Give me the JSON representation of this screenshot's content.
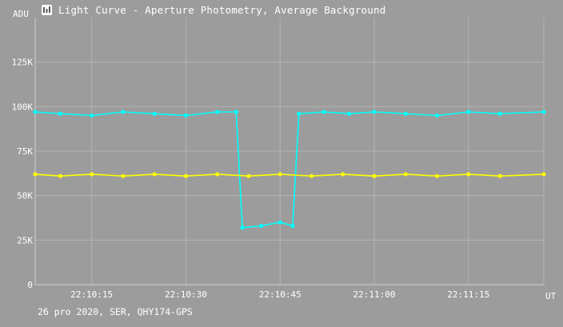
{
  "window": {
    "title": "Light Curve - Aperture Photometry, Average Background",
    "footer": "26 pro 2020, SER, QHY174-GPS",
    "icon": "light-curve-app-icon"
  },
  "chart_data": {
    "type": "line",
    "title": "Light Curve - Aperture Photometry, Average Background",
    "ylabel": "ADU",
    "xlabel": "UT",
    "ylim": [
      0,
      150000
    ],
    "xlim": [
      "22:10:06",
      "22:11:27"
    ],
    "y_ticks": [
      {
        "value": 0,
        "label": "0"
      },
      {
        "value": 25000,
        "label": "25K"
      },
      {
        "value": 50000,
        "label": "50K"
      },
      {
        "value": 75000,
        "label": "75K"
      },
      {
        "value": 100000,
        "label": "100K"
      },
      {
        "value": 125000,
        "label": "125K"
      }
    ],
    "x_ticks": [
      {
        "value": "22:10:15",
        "label": "22:10:15"
      },
      {
        "value": "22:10:30",
        "label": "22:10:30"
      },
      {
        "value": "22:10:45",
        "label": "22:10:45"
      },
      {
        "value": "22:11:00",
        "label": "22:11:00"
      },
      {
        "value": "22:11:15",
        "label": "22:11:15"
      }
    ],
    "grid": true,
    "legend": "none",
    "series": [
      {
        "color": "#00ffff",
        "x": [
          "22:10:06",
          "22:10:10",
          "22:10:15",
          "22:10:20",
          "22:10:25",
          "22:10:30",
          "22:10:35",
          "22:10:38",
          "22:10:39",
          "22:10:42",
          "22:10:45",
          "22:10:47",
          "22:10:48",
          "22:10:52",
          "22:10:56",
          "22:11:00",
          "22:11:05",
          "22:11:10",
          "22:11:15",
          "22:11:20",
          "22:11:27"
        ],
        "values": [
          97000,
          96000,
          95000,
          97000,
          96000,
          95000,
          97000,
          97000,
          32000,
          33000,
          35000,
          33000,
          96000,
          97000,
          96000,
          97000,
          96000,
          95000,
          97000,
          96000,
          97000
        ]
      },
      {
        "color": "#ffff00",
        "x": [
          "22:10:06",
          "22:10:10",
          "22:10:15",
          "22:10:20",
          "22:10:25",
          "22:10:30",
          "22:10:35",
          "22:10:40",
          "22:10:45",
          "22:10:50",
          "22:10:55",
          "22:11:00",
          "22:11:05",
          "22:11:10",
          "22:11:15",
          "22:11:20",
          "22:11:27"
        ],
        "values": [
          62000,
          61000,
          62000,
          61000,
          62000,
          61000,
          62000,
          61000,
          62000,
          61000,
          62000,
          61000,
          62000,
          61000,
          62000,
          61000,
          62000
        ]
      }
    ]
  }
}
